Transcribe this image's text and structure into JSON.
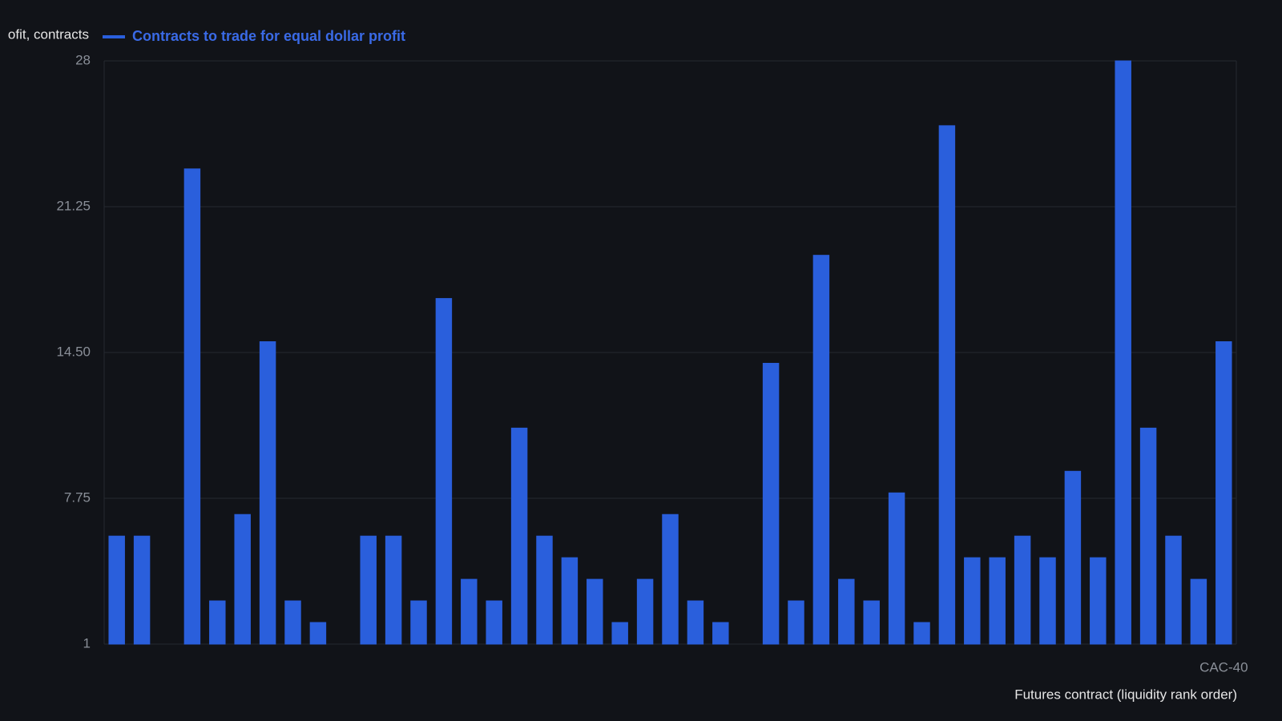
{
  "chart_data": {
    "type": "bar",
    "y_axis_label": "ofit, contracts",
    "x_axis_label": "Futures contract (liquidity rank order)",
    "series": [
      {
        "name": "Contracts to trade for equal dollar profit",
        "color": "#2a5fdc",
        "values": [
          6,
          6,
          1,
          23,
          3,
          7,
          15,
          3,
          2,
          1,
          6,
          6,
          3,
          17,
          4,
          3,
          11,
          6,
          5,
          4,
          2,
          4,
          7,
          3,
          2,
          1,
          14,
          3,
          19,
          4,
          3,
          8,
          2,
          25,
          5,
          5,
          6,
          5,
          9,
          5,
          28,
          11,
          6,
          4,
          15
        ]
      }
    ],
    "categories": [
      null,
      null,
      null,
      null,
      null,
      null,
      null,
      null,
      null,
      null,
      null,
      null,
      null,
      null,
      null,
      null,
      null,
      null,
      null,
      null,
      null,
      null,
      null,
      null,
      null,
      null,
      null,
      null,
      null,
      null,
      null,
      null,
      null,
      null,
      null,
      null,
      null,
      null,
      null,
      null,
      null,
      null,
      null,
      null,
      "CAC-40"
    ],
    "ylim": [
      1,
      28
    ],
    "yticks": [
      1,
      7.75,
      {
        "value": 14.5,
        "label": "14.50"
      },
      21.25,
      28
    ],
    "grid": true
  }
}
